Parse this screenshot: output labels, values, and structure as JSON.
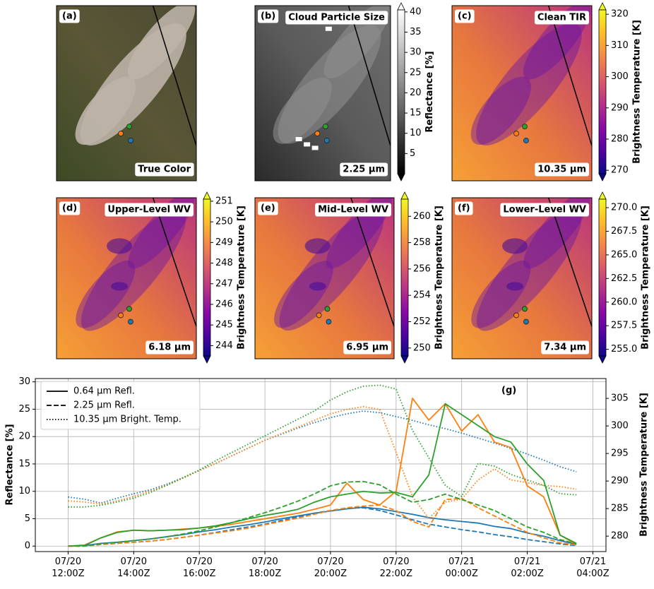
{
  "panels": [
    {
      "label": "(a)",
      "caption": "True Color"
    },
    {
      "label": "(b)",
      "title": "Cloud Particle Size",
      "caption": "2.25 µm",
      "colorbar": {
        "label": "Reflectance [%]",
        "lim": [
          0,
          40.5
        ],
        "ticks": [
          5,
          10,
          15,
          20,
          25,
          30,
          35,
          40
        ],
        "colormap": [
          "#000000",
          "#ffffff"
        ]
      }
    },
    {
      "label": "(c)",
      "title": "Clean TIR",
      "caption": "10.35 µm",
      "colorbar": {
        "label": "Brightness Temperature [K]",
        "lim": [
          268.9,
          321.4
        ],
        "ticks": [
          270,
          280,
          290,
          300,
          310,
          320
        ],
        "colormap": [
          "#0d0887",
          "#5302a3",
          "#8b0aa5",
          "#b83289",
          "#db5c68",
          "#f48849",
          "#febd2a",
          "#f0f921"
        ]
      }
    },
    {
      "label": "(d)",
      "title": "Upper-Level WV",
      "caption": "6.18 µm",
      "colorbar": {
        "label": "Brightness Temperature [K]",
        "lim": [
          243.5,
          251.1
        ],
        "ticks": [
          244,
          245,
          246,
          247,
          248,
          249,
          250,
          251
        ],
        "colormap": [
          "#0d0887",
          "#5302a3",
          "#8b0aa5",
          "#b83289",
          "#db5c68",
          "#f48849",
          "#febd2a",
          "#f0f921"
        ]
      }
    },
    {
      "label": "(e)",
      "title": "Mid-Level WV",
      "caption": "6.95 µm",
      "colorbar": {
        "label": "Brightness Temperature [K]",
        "lim": [
          249.4,
          261.3
        ],
        "ticks": [
          250,
          252,
          254,
          256,
          258,
          260
        ],
        "colormap": [
          "#0d0887",
          "#5302a3",
          "#8b0aa5",
          "#b83289",
          "#db5c68",
          "#f48849",
          "#febd2a",
          "#f0f921"
        ]
      }
    },
    {
      "label": "(f)",
      "title": "Lower-Level WV",
      "caption": "7.34 µm",
      "colorbar": {
        "label": "Brightness Temperature [K]",
        "lim": [
          254.3,
          270.9
        ],
        "ticks": [
          {
            "value": 255,
            "label": "255.0"
          },
          257.5,
          {
            "value": 260,
            "label": "260.0"
          },
          262.5,
          {
            "value": 265,
            "label": "265.0"
          },
          267.5,
          {
            "value": 270,
            "label": "270.0"
          }
        ],
        "colormap": [
          "#0d0887",
          "#5302a3",
          "#8b0aa5",
          "#b83289",
          "#db5c68",
          "#f48849",
          "#febd2a",
          "#f0f921"
        ]
      }
    }
  ],
  "chart_data": {
    "type": "line",
    "panel_label": "(g)",
    "ylabel": "Reflectance [%]",
    "y2label": "Brightness Temperature [K]",
    "x": [
      12,
      12.5,
      13,
      13.5,
      14,
      14.5,
      15,
      15.5,
      16,
      16.5,
      17,
      17.5,
      18,
      18.5,
      19,
      19.5,
      20,
      20.5,
      21,
      21.5,
      22,
      22.5,
      23,
      23.5,
      24,
      24.5,
      25,
      25.5,
      26,
      26.5,
      27,
      27.5
    ],
    "xlim": [
      11.0,
      28.4
    ],
    "xticks": [
      {
        "value": 12,
        "label": "07/20\n12:00Z"
      },
      {
        "value": 14,
        "label": "07/20\n14:00Z"
      },
      {
        "value": 16,
        "label": "07/20\n16:00Z"
      },
      {
        "value": 18,
        "label": "07/20\n18:00Z"
      },
      {
        "value": 20,
        "label": "07/20\n20:00Z"
      },
      {
        "value": 22,
        "label": "07/20\n22:00Z"
      },
      {
        "value": 24,
        "label": "07/21\n00:00Z"
      },
      {
        "value": 26,
        "label": "07/21\n02:00Z"
      },
      {
        "value": 28,
        "label": "07/21\n04:00Z"
      }
    ],
    "ylim": [
      -1,
      30.6
    ],
    "yticks": [
      0,
      5,
      10,
      15,
      20,
      25,
      30
    ],
    "y2lim": [
      277.2,
      308.6
    ],
    "y2ticks": [
      280,
      285,
      290,
      295,
      300,
      305
    ],
    "grid": true,
    "legend_position": "upper left",
    "legend_entries": [
      {
        "name": "0.64 µm Refl.",
        "linestyle": "solid"
      },
      {
        "name": "2.25 µm Refl.",
        "linestyle": "dashed"
      },
      {
        "name": "10.35 µm Bright. Temp.",
        "linestyle": "dotted"
      }
    ],
    "series": [
      {
        "color": "#1f77b4",
        "linestyle": "solid",
        "values": [
          0,
          0.1,
          0.5,
          0.7,
          1,
          1.3,
          1.7,
          2.1,
          2.6,
          3.0,
          3.5,
          3.9,
          4.4,
          5.0,
          5.5,
          6.0,
          6.4,
          6.8,
          7.1,
          6.8,
          6.3,
          5.8,
          5.2,
          4.8,
          4.5,
          4.2,
          3.6,
          3.2,
          2.4,
          1.8,
          1.0,
          0.3
        ]
      },
      {
        "color": "#1f77b4",
        "linestyle": "dashed",
        "values": [
          0,
          0,
          0.3,
          0.5,
          0.7,
          0.9,
          1.2,
          1.6,
          2.0,
          2.5,
          3.0,
          3.5,
          4.0,
          4.7,
          5.3,
          6.0,
          6.5,
          6.9,
          7.0,
          6.5,
          5.7,
          4.8,
          4.0,
          3.5,
          3.0,
          2.6,
          2.1,
          1.7,
          1.2,
          0.8,
          0.4,
          0.1
        ]
      },
      {
        "color": "#1f77b4",
        "linestyle": "dotted",
        "axis": "y2",
        "values": [
          287.1,
          286.7,
          286.0,
          286.9,
          287.7,
          288.4,
          289.4,
          290.6,
          291.9,
          293.2,
          294.6,
          296.0,
          297.4,
          298.5,
          299.6,
          300.6,
          301.5,
          302.2,
          302.7,
          302.4,
          301.7,
          301.0,
          300.2,
          299.5,
          298.7,
          297.8,
          296.9,
          295.9,
          294.9,
          293.8,
          292.6,
          291.7
        ]
      },
      {
        "color": "#ff7f0e",
        "linestyle": "solid",
        "values": [
          0,
          0.2,
          1.5,
          2.6,
          2.9,
          2.8,
          2.9,
          3.1,
          3.3,
          3.6,
          4.0,
          4.5,
          5.0,
          5.5,
          6.0,
          6.7,
          7.5,
          11.5,
          8.5,
          7.5,
          10,
          27,
          23,
          26,
          21,
          24,
          19,
          18,
          11,
          9,
          2,
          0.3
        ]
      },
      {
        "color": "#ff7f0e",
        "linestyle": "dashed",
        "values": [
          0,
          0,
          0.3,
          0.5,
          0.7,
          0.9,
          1.2,
          1.6,
          2.0,
          2.4,
          2.8,
          3.3,
          3.9,
          4.5,
          5.1,
          5.8,
          6.5,
          7.0,
          7.3,
          7.5,
          6.5,
          4.5,
          3.5,
          8.5,
          8.7,
          7,
          5.5,
          4,
          2.5,
          1.5,
          0.6,
          0.2
        ]
      },
      {
        "color": "#ff7f0e",
        "linestyle": "dotted",
        "axis": "y2",
        "values": [
          286.4,
          286.2,
          285.8,
          286.4,
          287.2,
          288.2,
          289.2,
          290.5,
          291.9,
          293.2,
          294.6,
          296.0,
          297.4,
          298.6,
          299.8,
          301.0,
          302.2,
          303.0,
          303.5,
          303.0,
          295.2,
          287.2,
          283.2,
          286.2,
          286.7,
          290.2,
          292.2,
          290.2,
          289.7,
          289.2,
          289.0,
          288.5
        ]
      },
      {
        "color": "#2ca02c",
        "linestyle": "solid",
        "values": [
          0,
          0.1,
          1.5,
          2.5,
          2.9,
          2.8,
          2.9,
          3.0,
          3.3,
          3.7,
          4.3,
          5.0,
          5.6,
          6.1,
          6.7,
          8,
          9,
          9.5,
          10,
          9.7,
          9.8,
          9,
          13,
          26,
          24,
          22,
          20,
          19,
          15,
          12,
          2,
          0.5
        ]
      },
      {
        "color": "#2ca02c",
        "linestyle": "dashed",
        "values": [
          0,
          0,
          0.4,
          0.7,
          1,
          1.3,
          1.7,
          2.2,
          2.8,
          3.5,
          4.3,
          5.2,
          6.1,
          7.1,
          8.2,
          9.5,
          11,
          11.7,
          11.8,
          11.2,
          9.5,
          8,
          8.5,
          9.5,
          8.5,
          7.5,
          6.5,
          5,
          3.5,
          2.5,
          1.2,
          0.4
        ]
      },
      {
        "color": "#2ca02c",
        "linestyle": "dotted",
        "axis": "y2",
        "values": [
          285.3,
          285.3,
          285.6,
          286.2,
          286.9,
          287.9,
          289.2,
          290.6,
          292.0,
          293.7,
          295.2,
          296.7,
          298.2,
          299.7,
          301.2,
          302.7,
          304.7,
          306.2,
          307.2,
          307.4,
          306.7,
          299.2,
          294.2,
          289.2,
          287.2,
          293.2,
          292.7,
          291.2,
          290.2,
          289.2,
          287.7,
          287.5
        ]
      }
    ]
  }
}
